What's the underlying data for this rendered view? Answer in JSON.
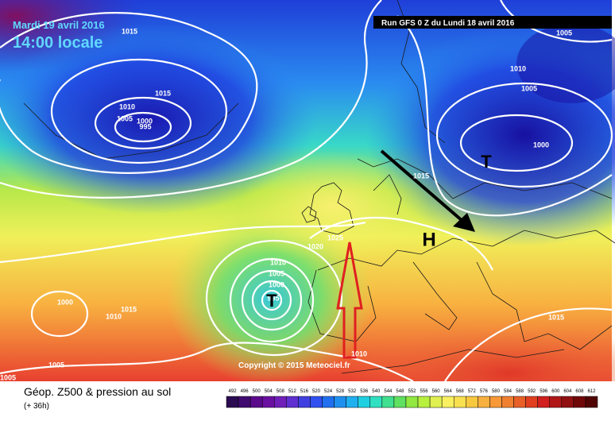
{
  "header": {
    "date": "Mardi 19 avril 2016",
    "time": "14:00 locale",
    "run": "Run GFS 0 Z du Lundi 18 avril 2016"
  },
  "footer": {
    "title": "Géop. Z500 & pression au sol",
    "lead": "(+ 36h)",
    "copyright": "Copyright © 2015 Meteociel.fr"
  },
  "isobar_labels": [
    1015,
    1015,
    1010,
    1005,
    1000,
    995,
    1005,
    1010,
    1005,
    1000,
    1015,
    1025,
    1020,
    1010,
    1005,
    1000,
    995,
    1000,
    1015,
    1010,
    1005,
    1010,
    1015,
    1005
  ],
  "pressure_centers": [
    "H",
    "T",
    "T"
  ],
  "legend": {
    "values": [
      492,
      496,
      500,
      504,
      508,
      512,
      516,
      520,
      524,
      528,
      532,
      536,
      540,
      544,
      548,
      552,
      556,
      560,
      564,
      568,
      572,
      576,
      580,
      584,
      588,
      592,
      596,
      600,
      604,
      608,
      612
    ]
  }
}
